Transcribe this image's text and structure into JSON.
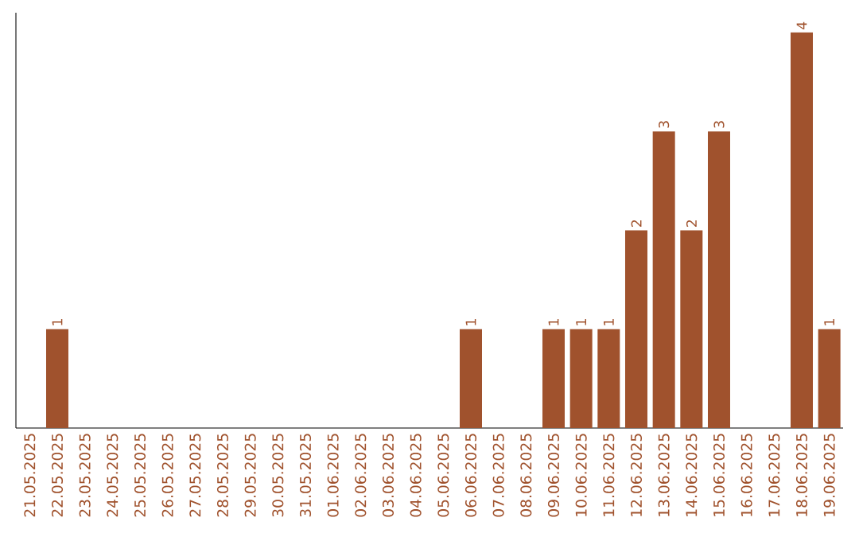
{
  "chart_data": {
    "type": "bar",
    "categories": [
      "21.05.2025",
      "22.05.2025",
      "23.05.2025",
      "24.05.2025",
      "25.05.2025",
      "26.05.2025",
      "27.05.2025",
      "28.05.2025",
      "29.05.2025",
      "30.05.2025",
      "31.05.2025",
      "01.06.2025",
      "02.06.2025",
      "03.06.2025",
      "04.06.2025",
      "05.06.2025",
      "06.06.2025",
      "07.06.2025",
      "08.06.2025",
      "09.06.2025",
      "10.06.2025",
      "11.06.2025",
      "12.06.2025",
      "13.06.2025",
      "14.06.2025",
      "15.06.2025",
      "16.06.2025",
      "17.06.2025",
      "18.06.2025",
      "19.06.2025"
    ],
    "values": [
      0,
      1,
      0,
      0,
      0,
      0,
      0,
      0,
      0,
      0,
      0,
      0,
      0,
      0,
      0,
      0,
      1,
      0,
      0,
      1,
      1,
      1,
      2,
      3,
      2,
      3,
      0,
      0,
      4,
      1
    ],
    "value_labels": [
      null,
      "1",
      null,
      null,
      null,
      null,
      null,
      null,
      null,
      null,
      null,
      null,
      null,
      null,
      null,
      null,
      "1",
      null,
      null,
      "1",
      "1",
      "1",
      "2",
      "3",
      "2",
      "3",
      null,
      null,
      "4",
      "1"
    ],
    "color": "#a0522d",
    "ylim": [
      0,
      4.2
    ],
    "tick_labels": "x"
  }
}
